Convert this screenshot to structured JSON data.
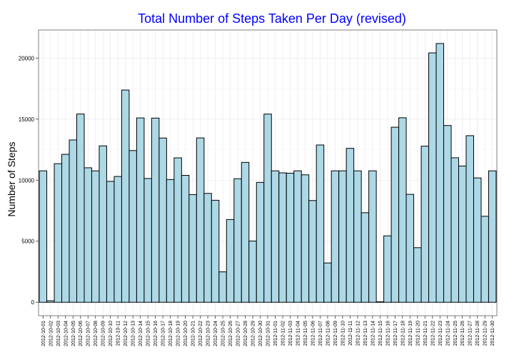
{
  "colors": {
    "title": "#0000ff",
    "bar_fill": "#add8e6",
    "bar_stroke": "#000000",
    "grid_major": "#e6e6e6",
    "grid_minor": "#f3f3f3",
    "panel_border": "#7f7f7f"
  },
  "chart_data": {
    "type": "bar",
    "title": "Total Number of Steps Taken Per Day (revised)",
    "xlabel": "",
    "ylabel": "Number of Steps",
    "ylim": [
      -1100,
      22300
    ],
    "yticks": [
      0,
      5000,
      10000,
      15000,
      20000
    ],
    "ytick_labels": [
      "0",
      "5000",
      "10000",
      "15000",
      "20000"
    ],
    "grid": true,
    "categories": [
      "2012-10-01",
      "2012-10-02",
      "2012-10-03",
      "2012-10-04",
      "2012-10-05",
      "2012-10-06",
      "2012-10-07",
      "2012-10-08",
      "2012-10-09",
      "2012-10-10",
      "2012-10-11",
      "2012-10-12",
      "2012-10-13",
      "2012-10-14",
      "2012-10-15",
      "2012-10-16",
      "2012-10-17",
      "2012-10-18",
      "2012-10-19",
      "2012-10-20",
      "2012-10-21",
      "2012-10-22",
      "2012-10-23",
      "2012-10-24",
      "2012-10-25",
      "2012-10-26",
      "2012-10-27",
      "2012-10-28",
      "2012-10-29",
      "2012-10-30",
      "2012-10-31",
      "2012-11-01",
      "2012-11-02",
      "2012-11-03",
      "2012-11-04",
      "2012-11-05",
      "2012-11-06",
      "2012-11-07",
      "2012-11-08",
      "2012-11-09",
      "2012-11-10",
      "2012-11-11",
      "2012-11-12",
      "2012-11-13",
      "2012-11-14",
      "2012-11-15",
      "2012-11-16",
      "2012-11-17",
      "2012-11-18",
      "2012-11-19",
      "2012-11-20",
      "2012-11-21",
      "2012-11-22",
      "2012-11-23",
      "2012-11-24",
      "2012-11-25",
      "2012-11-26",
      "2012-11-27",
      "2012-11-28",
      "2012-11-29",
      "2012-11-30"
    ],
    "values": [
      10766,
      126,
      11352,
      12116,
      13294,
      15420,
      11015,
      10766,
      12811,
      9900,
      10304,
      17382,
      12426,
      15098,
      10139,
      15084,
      13452,
      10056,
      11829,
      10395,
      8821,
      13460,
      8918,
      8355,
      2492,
      6778,
      10119,
      11458,
      5018,
      9819,
      15414,
      10766,
      10600,
      10571,
      10766,
      10439,
      8334,
      12883,
      3219,
      10766,
      10766,
      12608,
      10765,
      7336,
      10766,
      41,
      5441,
      14339,
      15110,
      8841,
      4472,
      12787,
      20427,
      21194,
      14478,
      11834,
      11162,
      13646,
      10183,
      7047,
      10766
    ]
  }
}
